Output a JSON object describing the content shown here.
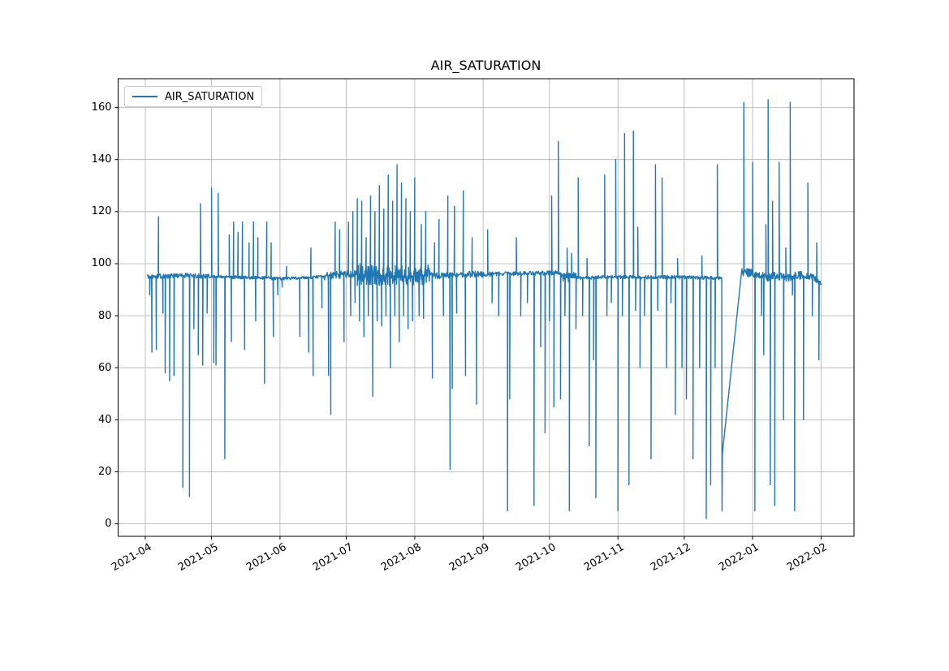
{
  "title": "AIR_SATURATION",
  "legend": {
    "label": "AIR_SATURATION",
    "position": "upper left"
  },
  "colors": {
    "line": "#1f77b4",
    "grid": "#b0b0b0",
    "axes": "#000000",
    "background": "#ffffff",
    "text": "#000000"
  },
  "chart_data": {
    "type": "line",
    "title": "AIR_SATURATION",
    "series_name": "AIR_SATURATION",
    "line_color": "#1f77b4",
    "grid": true,
    "legend_position": "upper left",
    "x_axis": {
      "tick_labels": [
        "2021-04",
        "2021-05",
        "2021-06",
        "2021-07",
        "2021-08",
        "2021-09",
        "2021-10",
        "2021-11",
        "2021-12",
        "2022-01",
        "2022-02"
      ],
      "limits_days_from_2021_04_01": [
        -12.3,
        320.9
      ]
    },
    "y_axis": {
      "ticks": [
        0,
        20,
        40,
        60,
        80,
        100,
        120,
        140,
        160
      ],
      "limits": [
        -4.8,
        171.1
      ]
    },
    "data_start": "2021-04-02",
    "data_end": "2022-02-01",
    "baseline_points": [
      [
        "2021-04-02",
        95
      ],
      [
        "2021-04-20",
        95.5
      ],
      [
        "2021-05-01",
        95
      ],
      [
        "2021-05-25",
        94.5
      ],
      [
        "2021-06-01",
        94.2
      ],
      [
        "2021-06-20",
        95
      ],
      [
        "2021-07-01",
        96
      ],
      [
        "2021-07-15",
        95.5
      ],
      [
        "2021-08-01",
        95.2
      ],
      [
        "2021-09-01",
        96
      ],
      [
        "2021-10-05",
        96.5
      ],
      [
        "2021-10-08",
        94.5
      ],
      [
        "2021-11-01",
        94.8
      ],
      [
        "2021-12-01",
        94.8
      ],
      [
        "2021-12-18",
        94.5
      ],
      [
        "2021-12-27",
        97
      ],
      [
        "2022-01-03",
        96
      ],
      [
        "2022-01-08",
        94.5
      ],
      [
        "2022-01-12",
        95.5
      ],
      [
        "2022-01-16",
        94.5
      ],
      [
        "2022-01-22",
        95.5
      ],
      [
        "2022-01-28",
        95
      ],
      [
        "2022-02-01",
        92
      ]
    ],
    "noise_segments": [
      [
        "2021-04-02",
        "2021-04-30",
        0.9
      ],
      [
        "2021-05-01",
        "2021-06-20",
        0.6
      ],
      [
        "2021-06-21",
        "2021-07-05",
        1.4
      ],
      [
        "2021-07-06",
        "2021-08-07",
        4.2
      ],
      [
        "2021-08-08",
        "2021-08-31",
        1.2
      ],
      [
        "2021-09-01",
        "2021-10-06",
        0.8
      ],
      [
        "2021-10-07",
        "2021-10-12",
        2.2
      ],
      [
        "2021-10-13",
        "2021-12-17",
        0.7
      ],
      [
        "2021-12-27",
        "2022-01-22",
        1.6
      ],
      [
        "2022-01-23",
        "2022-02-01",
        1.1
      ]
    ],
    "gap": {
      "start": "2021-12-18",
      "drop_to": 5,
      "diag_from": 27,
      "end": "2021-12-27",
      "end_value": 97
    },
    "spikes": [
      [
        "2021-04-03",
        88
      ],
      [
        "2021-04-04",
        66
      ],
      [
        "2021-04-06",
        67
      ],
      [
        "2021-04-07",
        118
      ],
      [
        "2021-04-09",
        81
      ],
      [
        "2021-04-10",
        58
      ],
      [
        "2021-04-12",
        55
      ],
      [
        "2021-04-14",
        57
      ],
      [
        "2021-04-18",
        14
      ],
      [
        "2021-04-21",
        10.5
      ],
      [
        "2021-04-23",
        75
      ],
      [
        "2021-04-25",
        65
      ],
      [
        "2021-04-26",
        123
      ],
      [
        "2021-04-27",
        61
      ],
      [
        "2021-04-29",
        81
      ],
      [
        "2021-05-01",
        129
      ],
      [
        "2021-05-02",
        62
      ],
      [
        "2021-05-03",
        61
      ],
      [
        "2021-05-04",
        127
      ],
      [
        "2021-05-07",
        25
      ],
      [
        "2021-05-09",
        111
      ],
      [
        "2021-05-10",
        70
      ],
      [
        "2021-05-11",
        116
      ],
      [
        "2021-05-13",
        112
      ],
      [
        "2021-05-15",
        116
      ],
      [
        "2021-05-16",
        67
      ],
      [
        "2021-05-18",
        108
      ],
      [
        "2021-05-20",
        116
      ],
      [
        "2021-05-21",
        78
      ],
      [
        "2021-05-22",
        110
      ],
      [
        "2021-05-25",
        54
      ],
      [
        "2021-05-26",
        116
      ],
      [
        "2021-05-28",
        108
      ],
      [
        "2021-05-29",
        72
      ],
      [
        "2021-05-31",
        88
      ],
      [
        "2021-06-02",
        91
      ],
      [
        "2021-06-04",
        99
      ],
      [
        "2021-06-10",
        72
      ],
      [
        "2021-06-14",
        66
      ],
      [
        "2021-06-15",
        106
      ],
      [
        "2021-06-16",
        57
      ],
      [
        "2021-06-20",
        83
      ],
      [
        "2021-06-23",
        57
      ],
      [
        "2021-06-24",
        42
      ],
      [
        "2021-06-26",
        116
      ],
      [
        "2021-06-28",
        113
      ],
      [
        "2021-06-30",
        70
      ],
      [
        "2021-07-02",
        116
      ],
      [
        "2021-07-03",
        80
      ],
      [
        "2021-07-04",
        120
      ],
      [
        "2021-07-05",
        85
      ],
      [
        "2021-07-06",
        125
      ],
      [
        "2021-07-07",
        78
      ],
      [
        "2021-07-08",
        124
      ],
      [
        "2021-07-09",
        72
      ],
      [
        "2021-07-10",
        110
      ],
      [
        "2021-07-11",
        80
      ],
      [
        "2021-07-12",
        126
      ],
      [
        "2021-07-13",
        49
      ],
      [
        "2021-07-14",
        120
      ],
      [
        "2021-07-15",
        78
      ],
      [
        "2021-07-16",
        130
      ],
      [
        "2021-07-17",
        76
      ],
      [
        "2021-07-18",
        121
      ],
      [
        "2021-07-19",
        80
      ],
      [
        "2021-07-20",
        134
      ],
      [
        "2021-07-21",
        60
      ],
      [
        "2021-07-22",
        124
      ],
      [
        "2021-07-23",
        80
      ],
      [
        "2021-07-24",
        138
      ],
      [
        "2021-07-25",
        70
      ],
      [
        "2021-07-26",
        131
      ],
      [
        "2021-07-27",
        80
      ],
      [
        "2021-07-28",
        125
      ],
      [
        "2021-07-29",
        75
      ],
      [
        "2021-07-30",
        120
      ],
      [
        "2021-07-31",
        78
      ],
      [
        "2021-08-01",
        133
      ],
      [
        "2021-08-03",
        80
      ],
      [
        "2021-08-04",
        115
      ],
      [
        "2021-08-05",
        79
      ],
      [
        "2021-08-06",
        120
      ],
      [
        "2021-08-09",
        56
      ],
      [
        "2021-08-10",
        108
      ],
      [
        "2021-08-12",
        117
      ],
      [
        "2021-08-14",
        80
      ],
      [
        "2021-08-16",
        126
      ],
      [
        "2021-08-17",
        21
      ],
      [
        "2021-08-18",
        52
      ],
      [
        "2021-08-19",
        122
      ],
      [
        "2021-08-20",
        81
      ],
      [
        "2021-08-23",
        128
      ],
      [
        "2021-08-24",
        57
      ],
      [
        "2021-08-27",
        110
      ],
      [
        "2021-08-29",
        46
      ],
      [
        "2021-09-03",
        113
      ],
      [
        "2021-09-05",
        85
      ],
      [
        "2021-09-08",
        80
      ],
      [
        "2021-09-12",
        5
      ],
      [
        "2021-09-13",
        48
      ],
      [
        "2021-09-16",
        110
      ],
      [
        "2021-09-18",
        80
      ],
      [
        "2021-09-21",
        85
      ],
      [
        "2021-09-24",
        7
      ],
      [
        "2021-09-27",
        68
      ],
      [
        "2021-09-29",
        35
      ],
      [
        "2021-10-01",
        78
      ],
      [
        "2021-10-02",
        126
      ],
      [
        "2021-10-03",
        45
      ],
      [
        "2021-10-05",
        147
      ],
      [
        "2021-10-06",
        48
      ],
      [
        "2021-10-08",
        80
      ],
      [
        "2021-10-09",
        106
      ],
      [
        "2021-10-10",
        5
      ],
      [
        "2021-10-11",
        104
      ],
      [
        "2021-10-13",
        75
      ],
      [
        "2021-10-14",
        133
      ],
      [
        "2021-10-16",
        80
      ],
      [
        "2021-10-18",
        102
      ],
      [
        "2021-10-19",
        30
      ],
      [
        "2021-10-21",
        63
      ],
      [
        "2021-10-22",
        10
      ],
      [
        "2021-10-26",
        134
      ],
      [
        "2021-10-27",
        80
      ],
      [
        "2021-10-29",
        85
      ],
      [
        "2021-10-31",
        140
      ],
      [
        "2021-11-01",
        5
      ],
      [
        "2021-11-03",
        80
      ],
      [
        "2021-11-04",
        150
      ],
      [
        "2021-11-06",
        15
      ],
      [
        "2021-11-08",
        151
      ],
      [
        "2021-11-09",
        82
      ],
      [
        "2021-11-10",
        114
      ],
      [
        "2021-11-11",
        60
      ],
      [
        "2021-11-13",
        80
      ],
      [
        "2021-11-16",
        25
      ],
      [
        "2021-11-18",
        138
      ],
      [
        "2021-11-19",
        82
      ],
      [
        "2021-11-21",
        133
      ],
      [
        "2021-11-23",
        60
      ],
      [
        "2021-11-25",
        85
      ],
      [
        "2021-11-27",
        42
      ],
      [
        "2021-11-28",
        102
      ],
      [
        "2021-11-30",
        60
      ],
      [
        "2021-12-02",
        48
      ],
      [
        "2021-12-05",
        25
      ],
      [
        "2021-12-08",
        60
      ],
      [
        "2021-12-09",
        103
      ],
      [
        "2021-12-11",
        2
      ],
      [
        "2021-12-13",
        15
      ],
      [
        "2021-12-15",
        60
      ],
      [
        "2021-12-16",
        138
      ],
      [
        "2021-12-28",
        162
      ],
      [
        "2022-01-01",
        139
      ],
      [
        "2022-01-02",
        5
      ],
      [
        "2022-01-05",
        80
      ],
      [
        "2022-01-06",
        65
      ],
      [
        "2022-01-07",
        115
      ],
      [
        "2022-01-08",
        163
      ],
      [
        "2022-01-09",
        15
      ],
      [
        "2022-01-10",
        124
      ],
      [
        "2022-01-11",
        7
      ],
      [
        "2022-01-13",
        139
      ],
      [
        "2022-01-15",
        40
      ],
      [
        "2022-01-16",
        106
      ],
      [
        "2022-01-18",
        162
      ],
      [
        "2022-01-19",
        88
      ],
      [
        "2022-01-20",
        5
      ],
      [
        "2022-01-24",
        40
      ],
      [
        "2022-01-26",
        131
      ],
      [
        "2022-01-28",
        80
      ],
      [
        "2022-01-30",
        108
      ],
      [
        "2022-01-31",
        63
      ]
    ]
  }
}
